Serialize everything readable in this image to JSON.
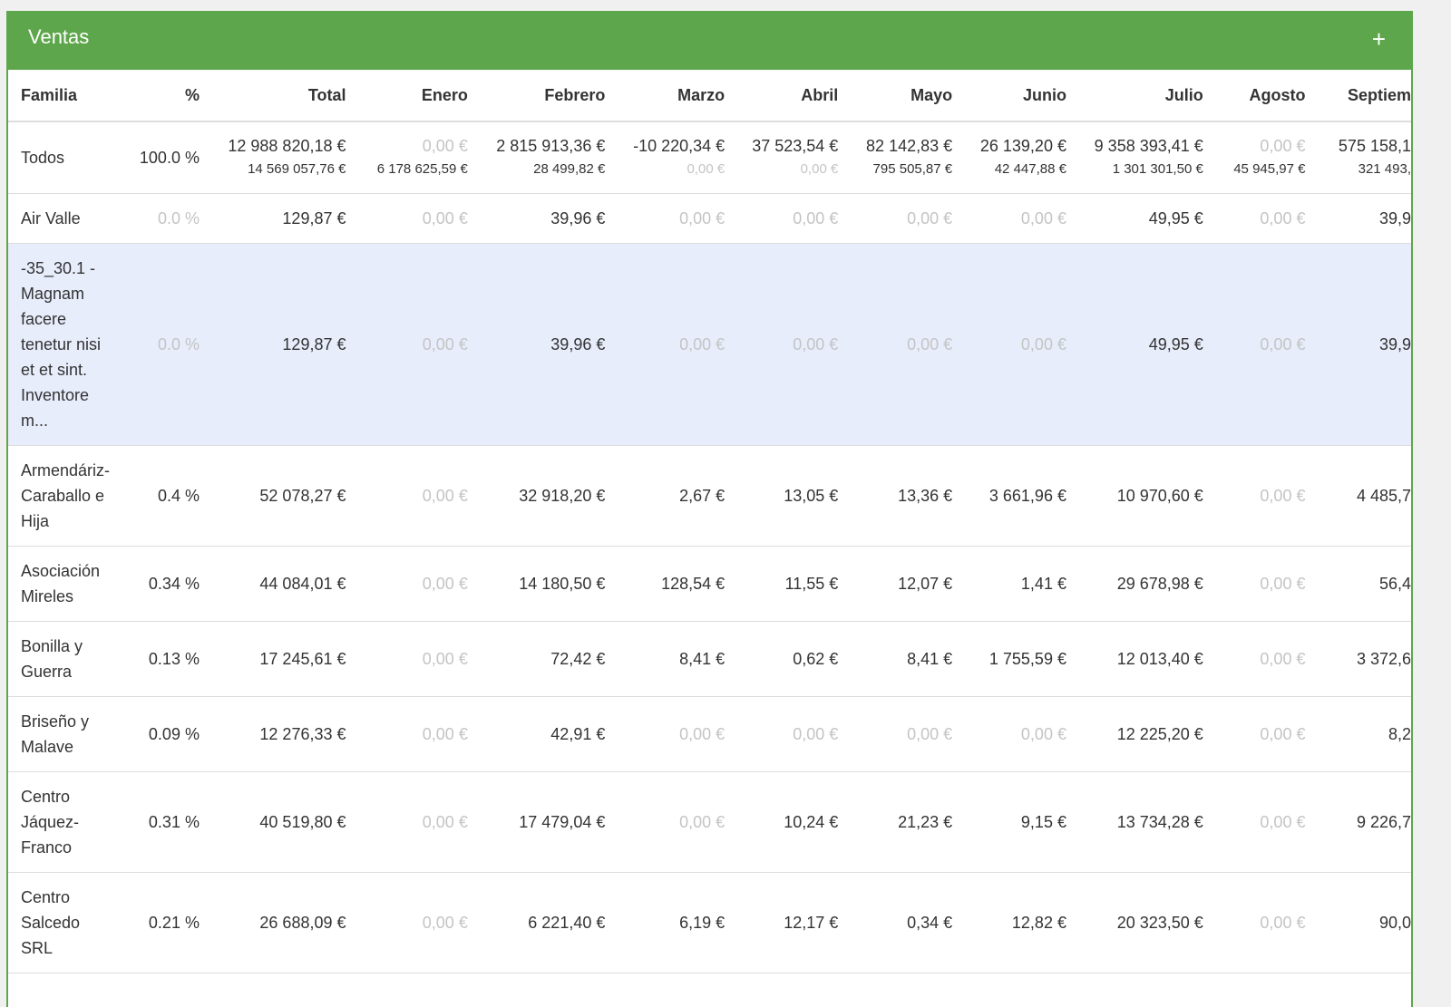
{
  "header": {
    "title": "Ventas",
    "action": "+"
  },
  "table": {
    "columns": [
      "Familia",
      "%",
      "Total",
      "Enero",
      "Febrero",
      "Marzo",
      "Abril",
      "Mayo",
      "Junio",
      "Julio",
      "Agosto",
      "Septiem"
    ],
    "rows": [
      [
        "Todos",
        "100.0 %",
        [
          "12 988 820,18 €",
          "14 569 057,76 €"
        ],
        [
          "0,00 €",
          "6 178 625,59 €"
        ],
        [
          "2 815 913,36 €",
          "28 499,82 €"
        ],
        [
          "-10 220,34 €",
          "0,00 €"
        ],
        [
          "37 523,54 €",
          "0,00 €"
        ],
        [
          "82 142,83 €",
          "795 505,87 €"
        ],
        [
          "26 139,20 €",
          "42 447,88 €"
        ],
        [
          "9 358 393,41 €",
          "1 301 301,50 €"
        ],
        [
          "0,00 €",
          "45 945,97 €"
        ],
        [
          "575 158,1",
          "321 493,"
        ]
      ],
      [
        "Air Valle",
        "0.0 %",
        "129,87 €",
        "0,00 €",
        "39,96 €",
        "0,00 €",
        "0,00 €",
        "0,00 €",
        "0,00 €",
        "49,95 €",
        "0,00 €",
        "39,9"
      ],
      [
        "-35_30.1 - Magnam facere tenetur nisi et et sint. Inventore m...",
        "0.0 %",
        "129,87 €",
        "0,00 €",
        "39,96 €",
        "0,00 €",
        "0,00 €",
        "0,00 €",
        "0,00 €",
        "49,95 €",
        "0,00 €",
        "39,9"
      ],
      [
        "Armendáriz-Caraballo e Hija",
        "0.4 %",
        "52 078,27 €",
        "0,00 €",
        "32 918,20 €",
        "2,67 €",
        "13,05 €",
        "13,36 €",
        "3 661,96 €",
        "10 970,60 €",
        "0,00 €",
        "4 485,7"
      ],
      [
        "Asociación Mireles",
        "0.34 %",
        "44 084,01 €",
        "0,00 €",
        "14 180,50 €",
        "128,54 €",
        "11,55 €",
        "12,07 €",
        "1,41 €",
        "29 678,98 €",
        "0,00 €",
        "56,4"
      ],
      [
        "Bonilla y Guerra",
        "0.13 %",
        "17 245,61 €",
        "0,00 €",
        "72,42 €",
        "8,41 €",
        "0,62 €",
        "8,41 €",
        "1 755,59 €",
        "12 013,40 €",
        "0,00 €",
        "3 372,6"
      ],
      [
        "Briseño y Malave",
        "0.09 %",
        "12 276,33 €",
        "0,00 €",
        "42,91 €",
        "0,00 €",
        "0,00 €",
        "0,00 €",
        "0,00 €",
        "12 225,20 €",
        "0,00 €",
        "8,2"
      ],
      [
        "Centro Jáquez-Franco",
        "0.31 %",
        "40 519,80 €",
        "0,00 €",
        "17 479,04 €",
        "0,00 €",
        "10,24 €",
        "21,23 €",
        "9,15 €",
        "13 734,28 €",
        "0,00 €",
        "9 226,7"
      ],
      [
        "Centro Salcedo SRL",
        "0.21 %",
        "26 688,09 €",
        "0,00 €",
        "6 221,40 €",
        "6,19 €",
        "12,17 €",
        "0,34 €",
        "12,82 €",
        "20 323,50 €",
        "0,00 €",
        "90,0"
      ]
    ]
  }
}
